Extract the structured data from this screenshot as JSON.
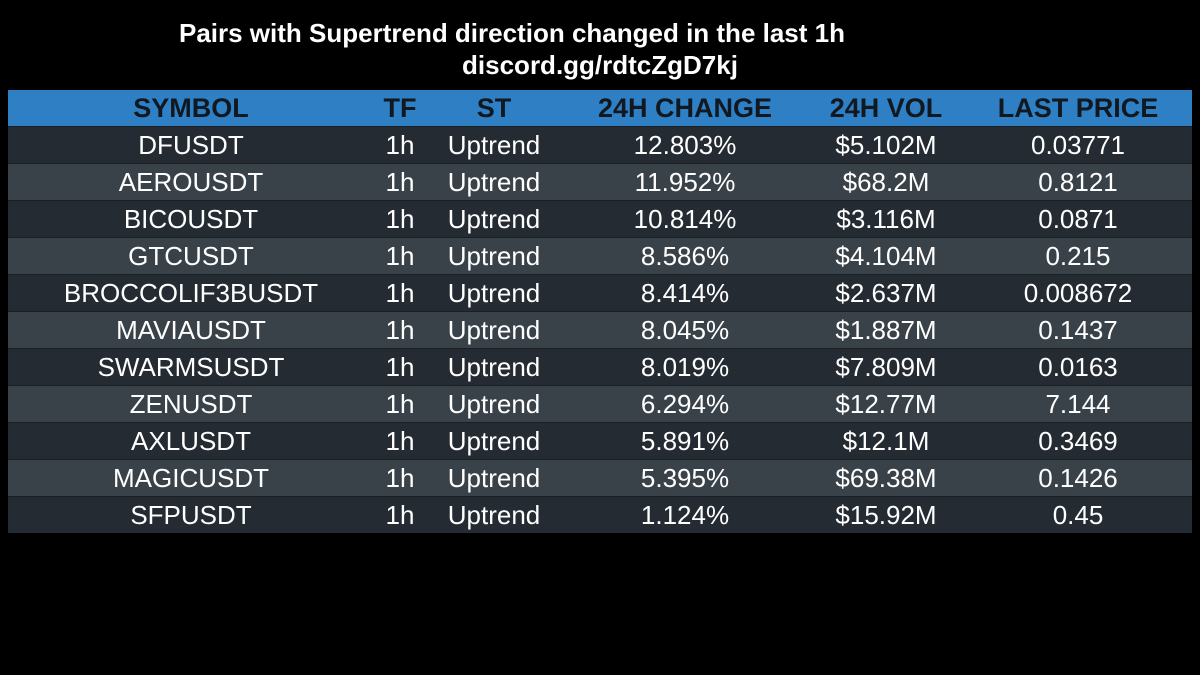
{
  "header": {
    "title": "Pairs with Supertrend direction changed in the last 1h",
    "subtitle": "discord.gg/rdtcZgD7kj"
  },
  "table": {
    "columns": [
      "SYMBOL",
      "TF",
      "ST",
      "24H CHANGE",
      "24H VOL",
      "LAST PRICE"
    ],
    "rows": [
      [
        "DFUSDT",
        "1h",
        "Uptrend",
        "12.803%",
        "$5.102M",
        "0.03771"
      ],
      [
        "AEROUSDT",
        "1h",
        "Uptrend",
        "11.952%",
        "$68.2M",
        "0.8121"
      ],
      [
        "BICOUSDT",
        "1h",
        "Uptrend",
        "10.814%",
        "$3.116M",
        "0.0871"
      ],
      [
        "GTCUSDT",
        "1h",
        "Uptrend",
        "8.586%",
        "$4.104M",
        "0.215"
      ],
      [
        "BROCCOLIF3BUSDT",
        "1h",
        "Uptrend",
        "8.414%",
        "$2.637M",
        "0.008672"
      ],
      [
        "MAVIAUSDT",
        "1h",
        "Uptrend",
        "8.045%",
        "$1.887M",
        "0.1437"
      ],
      [
        "SWARMSUSDT",
        "1h",
        "Uptrend",
        "8.019%",
        "$7.809M",
        "0.0163"
      ],
      [
        "ZENUSDT",
        "1h",
        "Uptrend",
        "6.294%",
        "$12.77M",
        "7.144"
      ],
      [
        "AXLUSDT",
        "1h",
        "Uptrend",
        "5.891%",
        "$12.1M",
        "0.3469"
      ],
      [
        "MAGICUSDT",
        "1h",
        "Uptrend",
        "5.395%",
        "$69.38M",
        "0.1426"
      ],
      [
        "SFPUSDT",
        "1h",
        "Uptrend",
        "1.124%",
        "$15.92M",
        "0.45"
      ]
    ]
  },
  "colors": {
    "background": "#000000",
    "header_bg": "#2e7fc3",
    "row_dark": "#242b32",
    "row_light": "#3a4249"
  }
}
